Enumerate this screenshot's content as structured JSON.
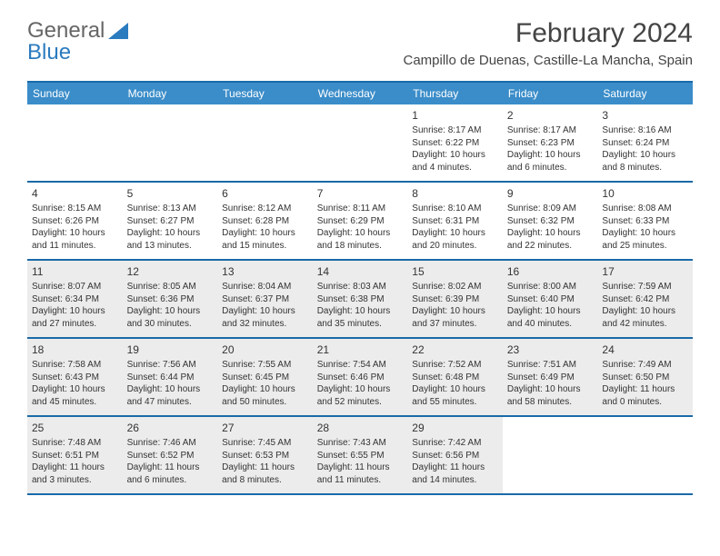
{
  "logo": {
    "text1": "General",
    "text2": "Blue"
  },
  "title": "February 2024",
  "location": "Campillo de Duenas, Castille-La Mancha, Spain",
  "colors": {
    "header_bg": "#3b8dc9",
    "header_text": "#ffffff",
    "rule": "#1a6aa8",
    "shaded_bg": "#ececec",
    "body_text": "#333333",
    "logo_blue": "#2b7bbf",
    "logo_gray": "#666666"
  },
  "day_names": [
    "Sunday",
    "Monday",
    "Tuesday",
    "Wednesday",
    "Thursday",
    "Friday",
    "Saturday"
  ],
  "weeks": [
    [
      {
        "n": "",
        "shaded": false
      },
      {
        "n": "",
        "shaded": false
      },
      {
        "n": "",
        "shaded": false
      },
      {
        "n": "",
        "shaded": false
      },
      {
        "n": "1",
        "shaded": false,
        "sunrise": "Sunrise: 8:17 AM",
        "sunset": "Sunset: 6:22 PM",
        "daylight1": "Daylight: 10 hours",
        "daylight2": "and 4 minutes."
      },
      {
        "n": "2",
        "shaded": false,
        "sunrise": "Sunrise: 8:17 AM",
        "sunset": "Sunset: 6:23 PM",
        "daylight1": "Daylight: 10 hours",
        "daylight2": "and 6 minutes."
      },
      {
        "n": "3",
        "shaded": false,
        "sunrise": "Sunrise: 8:16 AM",
        "sunset": "Sunset: 6:24 PM",
        "daylight1": "Daylight: 10 hours",
        "daylight2": "and 8 minutes."
      }
    ],
    [
      {
        "n": "4",
        "shaded": false,
        "sunrise": "Sunrise: 8:15 AM",
        "sunset": "Sunset: 6:26 PM",
        "daylight1": "Daylight: 10 hours",
        "daylight2": "and 11 minutes."
      },
      {
        "n": "5",
        "shaded": false,
        "sunrise": "Sunrise: 8:13 AM",
        "sunset": "Sunset: 6:27 PM",
        "daylight1": "Daylight: 10 hours",
        "daylight2": "and 13 minutes."
      },
      {
        "n": "6",
        "shaded": false,
        "sunrise": "Sunrise: 8:12 AM",
        "sunset": "Sunset: 6:28 PM",
        "daylight1": "Daylight: 10 hours",
        "daylight2": "and 15 minutes."
      },
      {
        "n": "7",
        "shaded": false,
        "sunrise": "Sunrise: 8:11 AM",
        "sunset": "Sunset: 6:29 PM",
        "daylight1": "Daylight: 10 hours",
        "daylight2": "and 18 minutes."
      },
      {
        "n": "8",
        "shaded": false,
        "sunrise": "Sunrise: 8:10 AM",
        "sunset": "Sunset: 6:31 PM",
        "daylight1": "Daylight: 10 hours",
        "daylight2": "and 20 minutes."
      },
      {
        "n": "9",
        "shaded": false,
        "sunrise": "Sunrise: 8:09 AM",
        "sunset": "Sunset: 6:32 PM",
        "daylight1": "Daylight: 10 hours",
        "daylight2": "and 22 minutes."
      },
      {
        "n": "10",
        "shaded": false,
        "sunrise": "Sunrise: 8:08 AM",
        "sunset": "Sunset: 6:33 PM",
        "daylight1": "Daylight: 10 hours",
        "daylight2": "and 25 minutes."
      }
    ],
    [
      {
        "n": "11",
        "shaded": true,
        "sunrise": "Sunrise: 8:07 AM",
        "sunset": "Sunset: 6:34 PM",
        "daylight1": "Daylight: 10 hours",
        "daylight2": "and 27 minutes."
      },
      {
        "n": "12",
        "shaded": true,
        "sunrise": "Sunrise: 8:05 AM",
        "sunset": "Sunset: 6:36 PM",
        "daylight1": "Daylight: 10 hours",
        "daylight2": "and 30 minutes."
      },
      {
        "n": "13",
        "shaded": true,
        "sunrise": "Sunrise: 8:04 AM",
        "sunset": "Sunset: 6:37 PM",
        "daylight1": "Daylight: 10 hours",
        "daylight2": "and 32 minutes."
      },
      {
        "n": "14",
        "shaded": true,
        "sunrise": "Sunrise: 8:03 AM",
        "sunset": "Sunset: 6:38 PM",
        "daylight1": "Daylight: 10 hours",
        "daylight2": "and 35 minutes."
      },
      {
        "n": "15",
        "shaded": true,
        "sunrise": "Sunrise: 8:02 AM",
        "sunset": "Sunset: 6:39 PM",
        "daylight1": "Daylight: 10 hours",
        "daylight2": "and 37 minutes."
      },
      {
        "n": "16",
        "shaded": true,
        "sunrise": "Sunrise: 8:00 AM",
        "sunset": "Sunset: 6:40 PM",
        "daylight1": "Daylight: 10 hours",
        "daylight2": "and 40 minutes."
      },
      {
        "n": "17",
        "shaded": true,
        "sunrise": "Sunrise: 7:59 AM",
        "sunset": "Sunset: 6:42 PM",
        "daylight1": "Daylight: 10 hours",
        "daylight2": "and 42 minutes."
      }
    ],
    [
      {
        "n": "18",
        "shaded": true,
        "sunrise": "Sunrise: 7:58 AM",
        "sunset": "Sunset: 6:43 PM",
        "daylight1": "Daylight: 10 hours",
        "daylight2": "and 45 minutes."
      },
      {
        "n": "19",
        "shaded": true,
        "sunrise": "Sunrise: 7:56 AM",
        "sunset": "Sunset: 6:44 PM",
        "daylight1": "Daylight: 10 hours",
        "daylight2": "and 47 minutes."
      },
      {
        "n": "20",
        "shaded": true,
        "sunrise": "Sunrise: 7:55 AM",
        "sunset": "Sunset: 6:45 PM",
        "daylight1": "Daylight: 10 hours",
        "daylight2": "and 50 minutes."
      },
      {
        "n": "21",
        "shaded": true,
        "sunrise": "Sunrise: 7:54 AM",
        "sunset": "Sunset: 6:46 PM",
        "daylight1": "Daylight: 10 hours",
        "daylight2": "and 52 minutes."
      },
      {
        "n": "22",
        "shaded": true,
        "sunrise": "Sunrise: 7:52 AM",
        "sunset": "Sunset: 6:48 PM",
        "daylight1": "Daylight: 10 hours",
        "daylight2": "and 55 minutes."
      },
      {
        "n": "23",
        "shaded": true,
        "sunrise": "Sunrise: 7:51 AM",
        "sunset": "Sunset: 6:49 PM",
        "daylight1": "Daylight: 10 hours",
        "daylight2": "and 58 minutes."
      },
      {
        "n": "24",
        "shaded": true,
        "sunrise": "Sunrise: 7:49 AM",
        "sunset": "Sunset: 6:50 PM",
        "daylight1": "Daylight: 11 hours",
        "daylight2": "and 0 minutes."
      }
    ],
    [
      {
        "n": "25",
        "shaded": true,
        "sunrise": "Sunrise: 7:48 AM",
        "sunset": "Sunset: 6:51 PM",
        "daylight1": "Daylight: 11 hours",
        "daylight2": "and 3 minutes."
      },
      {
        "n": "26",
        "shaded": true,
        "sunrise": "Sunrise: 7:46 AM",
        "sunset": "Sunset: 6:52 PM",
        "daylight1": "Daylight: 11 hours",
        "daylight2": "and 6 minutes."
      },
      {
        "n": "27",
        "shaded": true,
        "sunrise": "Sunrise: 7:45 AM",
        "sunset": "Sunset: 6:53 PM",
        "daylight1": "Daylight: 11 hours",
        "daylight2": "and 8 minutes."
      },
      {
        "n": "28",
        "shaded": true,
        "sunrise": "Sunrise: 7:43 AM",
        "sunset": "Sunset: 6:55 PM",
        "daylight1": "Daylight: 11 hours",
        "daylight2": "and 11 minutes."
      },
      {
        "n": "29",
        "shaded": true,
        "sunrise": "Sunrise: 7:42 AM",
        "sunset": "Sunset: 6:56 PM",
        "daylight1": "Daylight: 11 hours",
        "daylight2": "and 14 minutes."
      },
      {
        "n": "",
        "shaded": false
      },
      {
        "n": "",
        "shaded": false
      }
    ]
  ]
}
